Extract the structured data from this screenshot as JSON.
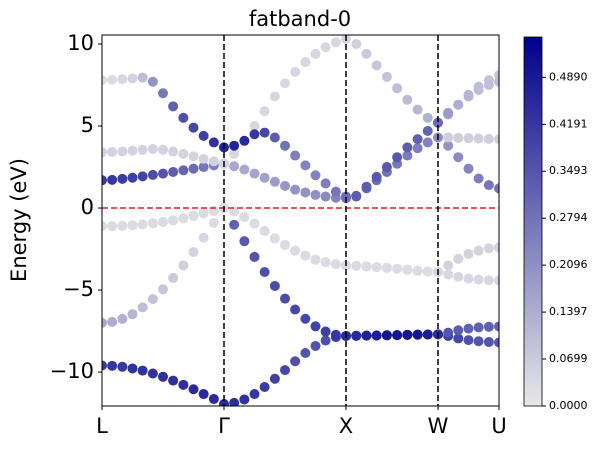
{
  "chart_data": {
    "type": "fatband",
    "title": "fatband-0",
    "ylabel": "Energy (eV)",
    "xlim": [
      0,
      3.254
    ],
    "ylim": [
      -12.07,
      10.55
    ],
    "xticks": [
      {
        "value": 0,
        "label": "L"
      },
      {
        "value": 1,
        "label": "Γ"
      },
      {
        "value": 2,
        "label": "X"
      },
      {
        "value": 2.754,
        "label": "W"
      },
      {
        "value": 3.254,
        "label": "U"
      }
    ],
    "yticks": [
      {
        "value": -10,
        "label": "−10"
      },
      {
        "value": -5,
        "label": "−5"
      },
      0,
      5,
      10
    ],
    "hline": 0,
    "hline_color": "#e32020",
    "vline_color": "#000000",
    "cmap": [
      "#e8e8e8",
      "#00008b"
    ],
    "clim": [
      0,
      0.549
    ],
    "cticks": [
      {
        "value": 0,
        "label": "0.0000"
      },
      0.0699,
      0.1397,
      0.2096,
      0.2794,
      0.3493,
      0.4191,
      {
        "value": 0.489,
        "label": "0.4890"
      }
    ],
    "x": [
      0,
      0.083,
      0.167,
      0.25,
      0.333,
      0.417,
      0.5,
      0.583,
      0.667,
      0.75,
      0.833,
      0.917,
      1,
      1.083,
      1.167,
      1.25,
      1.333,
      1.417,
      1.5,
      1.583,
      1.667,
      1.75,
      1.833,
      1.917,
      2,
      2.084,
      2.168,
      2.251,
      2.335,
      2.419,
      2.503,
      2.587,
      2.67,
      2.754,
      2.837,
      2.92,
      3.004,
      3.087,
      3.171,
      3.254
    ],
    "series": [
      {
        "values": [
          -9.6,
          -9.62,
          -9.68,
          -9.78,
          -9.91,
          -10.09,
          -10.29,
          -10.52,
          -10.78,
          -11.05,
          -11.34,
          -11.64,
          -11.95,
          -11.88,
          -11.67,
          -11.34,
          -10.91,
          -10.41,
          -9.88,
          -9.34,
          -8.84,
          -8.41,
          -8.08,
          -7.87,
          -7.8,
          -7.79,
          -7.78,
          -7.77,
          -7.76,
          -7.75,
          -7.73,
          -7.72,
          -7.71,
          -7.7,
          -7.8,
          -7.95,
          -8.05,
          -8.12,
          -8.17,
          -8.2
        ],
        "weights": [
          0.42,
          0.42,
          0.42,
          0.43,
          0.43,
          0.43,
          0.44,
          0.44,
          0.44,
          0.45,
          0.45,
          0.45,
          0.45,
          0.44,
          0.43,
          0.42,
          0.41,
          0.4,
          0.38,
          0.36,
          0.35,
          0.35,
          0.36,
          0.4,
          0.45,
          0.5,
          0.52,
          0.53,
          0.54,
          0.55,
          0.55,
          0.54,
          0.53,
          0.5,
          0.4,
          0.38,
          0.36,
          0.35,
          0.35,
          0.35
        ]
      },
      {
        "values": [
          -7,
          -6.94,
          -6.76,
          -6.47,
          -6.06,
          -5.55,
          -4.95,
          -4.26,
          -3.5,
          -2.68,
          -1.81,
          -0.91,
          0,
          -1.02,
          -2.02,
          -2.98,
          -3.9,
          -4.75,
          -5.52,
          -6.19,
          -6.75,
          -7.21,
          -7.53,
          -7.73,
          -7.8,
          -7.79,
          -7.78,
          -7.77,
          -7.76,
          -7.75,
          -7.73,
          -7.72,
          -7.71,
          -7.7,
          -7.6,
          -7.45,
          -7.35,
          -7.28,
          -7.24,
          -7.22
        ],
        "weights": [
          0.15,
          0.14,
          0.13,
          0.12,
          0.1,
          0.09,
          0.08,
          0.07,
          0.06,
          0.05,
          0.04,
          0.03,
          0.03,
          0.32,
          0.34,
          0.35,
          0.36,
          0.37,
          0.37,
          0.38,
          0.38,
          0.39,
          0.4,
          0.42,
          0.45,
          0.45,
          0.47,
          0.48,
          0.5,
          0.5,
          0.5,
          0.5,
          0.48,
          0.45,
          0.35,
          0.33,
          0.32,
          0.32,
          0.32,
          0.32
        ]
      },
      {
        "values": [
          -1.1,
          -1.1,
          -1.08,
          -1.05,
          -1,
          -0.93,
          -0.85,
          -0.75,
          -0.62,
          -0.48,
          -0.33,
          -0.17,
          0,
          -0.2,
          -0.55,
          -0.95,
          -1.4,
          -1.85,
          -2.25,
          -2.6,
          -2.9,
          -3.15,
          -3.3,
          -3.42,
          -3.5,
          -3.52,
          -3.56,
          -3.6,
          -3.65,
          -3.7,
          -3.76,
          -3.82,
          -3.87,
          -3.9,
          -3.5,
          -3.1,
          -2.8,
          -2.6,
          -2.45,
          -2.4
        ],
        "weights": [
          0.03,
          0.03,
          0.03,
          0.03,
          0.03,
          0.03,
          0.03,
          0.03,
          0.03,
          0.03,
          0.03,
          0.03,
          0.03,
          0.03,
          0.03,
          0.03,
          0.03,
          0.03,
          0.03,
          0.03,
          0.03,
          0.03,
          0.03,
          0.03,
          0.03,
          0.03,
          0.03,
          0.03,
          0.03,
          0.03,
          0.03,
          0.03,
          0.03,
          0.04,
          0.05,
          0.05,
          0.05,
          0.05,
          0.05,
          0.05
        ]
      },
      {
        "values": [
          -1.1,
          -1.1,
          -1.08,
          -1.05,
          -1,
          -0.93,
          -0.85,
          -0.75,
          -0.62,
          -0.48,
          -0.33,
          -0.17,
          0,
          -0.2,
          -0.55,
          -0.95,
          -1.4,
          -1.85,
          -2.25,
          -2.6,
          -2.9,
          -3.15,
          -3.3,
          -3.42,
          -3.5,
          -3.52,
          -3.56,
          -3.6,
          -3.65,
          -3.7,
          -3.76,
          -3.82,
          -3.87,
          -3.9,
          -4.05,
          -4.2,
          -4.3,
          -4.36,
          -4.4,
          -4.42
        ],
        "weights": [
          0.03,
          0.03,
          0.03,
          0.03,
          0.03,
          0.03,
          0.03,
          0.03,
          0.03,
          0.03,
          0.03,
          0.03,
          0.03,
          0.03,
          0.03,
          0.03,
          0.03,
          0.03,
          0.03,
          0.03,
          0.03,
          0.03,
          0.03,
          0.03,
          0.03,
          0.03,
          0.03,
          0.03,
          0.03,
          0.03,
          0.03,
          0.03,
          0.03,
          0.04,
          0.04,
          0.04,
          0.04,
          0.04,
          0.04,
          0.04
        ]
      },
      {
        "values": [
          1.7,
          1.72,
          1.78,
          1.85,
          1.93,
          2.02,
          2.1,
          2.2,
          2.3,
          2.4,
          2.5,
          2.6,
          2.7,
          2.55,
          2.35,
          2.1,
          1.85,
          1.6,
          1.35,
          1.12,
          0.95,
          0.8,
          0.7,
          0.63,
          0.6,
          0.75,
          1.2,
          1.7,
          2.2,
          2.7,
          3.2,
          3.65,
          4,
          4.3,
          3.8,
          3.1,
          2.4,
          1.8,
          1.4,
          1.2
        ],
        "weights": [
          0.42,
          0.42,
          0.41,
          0.4,
          0.39,
          0.37,
          0.35,
          0.33,
          0.31,
          0.29,
          0.27,
          0.25,
          0.22,
          0.15,
          0.15,
          0.16,
          0.17,
          0.18,
          0.19,
          0.2,
          0.2,
          0.21,
          0.22,
          0.24,
          0.26,
          0.3,
          0.3,
          0.29,
          0.28,
          0.27,
          0.26,
          0.25,
          0.24,
          0.22,
          0.2,
          0.22,
          0.24,
          0.25,
          0.27,
          0.28
        ]
      },
      {
        "values": [
          3.4,
          3.42,
          3.45,
          3.5,
          3.55,
          3.6,
          3.55,
          3.45,
          3.3,
          3.15,
          3,
          2.85,
          2.7,
          3.3,
          4.1,
          5,
          5.9,
          6.8,
          7.6,
          8.3,
          8.9,
          9.4,
          9.8,
          10.1,
          10.3,
          10,
          9.4,
          8.7,
          8,
          7.3,
          6.6,
          6,
          5.5,
          5.2,
          5.7,
          6.3,
          6.9,
          7.4,
          7.8,
          8.1
        ],
        "weights": [
          0.05,
          0.05,
          0.05,
          0.05,
          0.05,
          0.05,
          0.05,
          0.05,
          0.05,
          0.05,
          0.05,
          0.05,
          0.05,
          0.04,
          0.04,
          0.04,
          0.04,
          0.04,
          0.04,
          0.04,
          0.04,
          0.04,
          0.04,
          0.04,
          0.04,
          0.06,
          0.07,
          0.08,
          0.09,
          0.1,
          0.11,
          0.12,
          0.13,
          0.15,
          0.15,
          0.13,
          0.12,
          0.1,
          0.09,
          0.08
        ]
      },
      {
        "values": [
          7.8,
          7.82,
          7.86,
          7.9,
          7.95,
          7.7,
          7,
          6.2,
          5.5,
          4.9,
          4.4,
          4,
          3.7,
          3.8,
          4.1,
          4.5,
          4.6,
          4.3,
          3.8,
          3.2,
          2.6,
          2,
          1.5,
          1,
          0.7,
          0.7,
          1.3,
          1.9,
          2.5,
          3.1,
          3.7,
          4.2,
          4.7,
          5.2,
          5.8,
          6.3,
          6.8,
          7.2,
          7.5,
          7.7
        ],
        "weights": [
          0.03,
          0.03,
          0.04,
          0.05,
          0.1,
          0.2,
          0.27,
          0.32,
          0.36,
          0.38,
          0.4,
          0.43,
          0.47,
          0.47,
          0.45,
          0.42,
          0.38,
          0.33,
          0.28,
          0.25,
          0.24,
          0.24,
          0.25,
          0.27,
          0.3,
          0.33,
          0.33,
          0.34,
          0.34,
          0.34,
          0.33,
          0.32,
          0.31,
          0.3,
          0.18,
          0.14,
          0.12,
          0.1,
          0.1,
          0.1
        ]
      },
      {
        "values": [
          null,
          null,
          null,
          null,
          null,
          null,
          null,
          null,
          null,
          null,
          null,
          null,
          null,
          null,
          null,
          null,
          null,
          null,
          null,
          null,
          null,
          null,
          null,
          null,
          null,
          null,
          null,
          null,
          null,
          null,
          null,
          null,
          null,
          null,
          4.3,
          4.28,
          4.26,
          4.24,
          4.22,
          4.2
        ],
        "weights": [
          null,
          null,
          null,
          null,
          null,
          null,
          null,
          null,
          null,
          null,
          null,
          null,
          null,
          null,
          null,
          null,
          null,
          null,
          null,
          null,
          null,
          null,
          null,
          null,
          null,
          null,
          null,
          null,
          null,
          null,
          null,
          null,
          null,
          null,
          0.06,
          0.06,
          0.06,
          0.06,
          0.06,
          0.06
        ]
      }
    ]
  }
}
